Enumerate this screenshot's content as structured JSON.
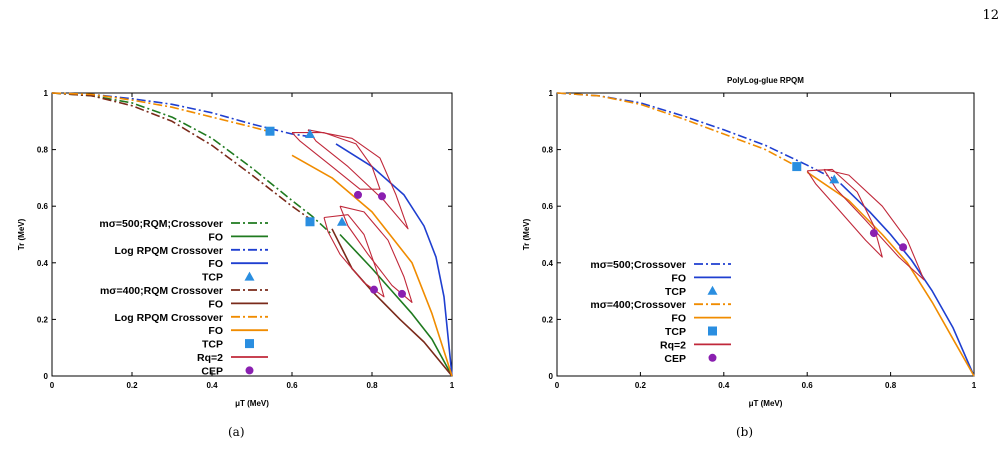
{
  "page_number": "12",
  "captions": [
    "(a)",
    "(b)"
  ],
  "colors": {
    "green": "#1f7a1f",
    "blue": "#1f3fd0",
    "darkred": "#7a2a1a",
    "orange": "#f08c00",
    "crimson": "#c0283a",
    "tcp": "#2a8ee0",
    "cep": "#8a1fb0"
  },
  "chart_data": [
    {
      "type": "line",
      "title": "",
      "xlabel": "μT (MeV)",
      "ylabel": "Tr (MeV)",
      "xlim": [
        0,
        1
      ],
      "ylim": [
        0,
        1
      ],
      "xticks": [
        "0",
        "0.2",
        "0.4",
        "0.6",
        "0.8",
        "1"
      ],
      "yticks": [
        "0",
        "0.2",
        "0.4",
        "0.6",
        "0.8",
        "1"
      ],
      "grid": false,
      "legend_position": "left",
      "legend": [
        {
          "label": "mσ=500;RQM;Crossover",
          "style": "dashdot",
          "color": "green"
        },
        {
          "label": "FO",
          "style": "solid",
          "color": "green"
        },
        {
          "label": "Log RPQM Crossover",
          "style": "dashdot",
          "color": "blue"
        },
        {
          "label": "FO",
          "style": "solid",
          "color": "blue"
        },
        {
          "label": "TCP",
          "style": "triangle",
          "color": "tcp"
        },
        {
          "label": "mσ=400;RQM Crossover",
          "style": "dashdot",
          "color": "darkred"
        },
        {
          "label": "FO",
          "style": "solid",
          "color": "darkred"
        },
        {
          "label": "Log RPQM Crossover",
          "style": "dashdot",
          "color": "orange"
        },
        {
          "label": "FO",
          "style": "solid",
          "color": "orange"
        },
        {
          "label": "TCP",
          "style": "square",
          "color": "tcp"
        },
        {
          "label": "Rq=2",
          "style": "solid",
          "color": "crimson"
        },
        {
          "label": "CEP",
          "style": "circle",
          "color": "cep"
        }
      ],
      "series": [
        {
          "color": "green",
          "style": "dashdot",
          "points": [
            [
              0,
              1
            ],
            [
              0.1,
              0.99
            ],
            [
              0.2,
              0.965
            ],
            [
              0.3,
              0.915
            ],
            [
              0.4,
              0.84
            ],
            [
              0.5,
              0.735
            ],
            [
              0.6,
              0.62
            ],
            [
              0.65,
              0.565
            ],
            [
              0.7,
              0.5
            ]
          ]
        },
        {
          "color": "green",
          "style": "solid",
          "points": [
            [
              0.72,
              0.5
            ],
            [
              0.8,
              0.38
            ],
            [
              0.85,
              0.3
            ],
            [
              0.9,
              0.22
            ],
            [
              0.95,
              0.13
            ],
            [
              1,
              0
            ]
          ]
        },
        {
          "color": "blue",
          "style": "dashdot",
          "points": [
            [
              0,
              1
            ],
            [
              0.1,
              0.995
            ],
            [
              0.2,
              0.98
            ],
            [
              0.3,
              0.96
            ],
            [
              0.4,
              0.93
            ],
            [
              0.5,
              0.89
            ],
            [
              0.6,
              0.855
            ],
            [
              0.65,
              0.845
            ]
          ]
        },
        {
          "color": "blue",
          "style": "solid",
          "points": [
            [
              0.71,
              0.82
            ],
            [
              0.8,
              0.74
            ],
            [
              0.88,
              0.64
            ],
            [
              0.93,
              0.53
            ],
            [
              0.96,
              0.42
            ],
            [
              0.98,
              0.28
            ],
            [
              1,
              0
            ]
          ]
        },
        {
          "color": "darkred",
          "style": "dashdot",
          "points": [
            [
              0,
              1
            ],
            [
              0.1,
              0.99
            ],
            [
              0.2,
              0.955
            ],
            [
              0.3,
              0.9
            ],
            [
              0.4,
              0.815
            ],
            [
              0.5,
              0.71
            ],
            [
              0.6,
              0.6
            ],
            [
              0.66,
              0.54
            ]
          ]
        },
        {
          "color": "darkred",
          "style": "solid",
          "points": [
            [
              0.7,
              0.52
            ],
            [
              0.75,
              0.38
            ],
            [
              0.8,
              0.3
            ],
            [
              0.87,
              0.2
            ],
            [
              0.93,
              0.12
            ],
            [
              1,
              0
            ]
          ]
        },
        {
          "color": "orange",
          "style": "dashdot",
          "points": [
            [
              0,
              1
            ],
            [
              0.1,
              0.995
            ],
            [
              0.2,
              0.975
            ],
            [
              0.3,
              0.95
            ],
            [
              0.4,
              0.915
            ],
            [
              0.5,
              0.88
            ],
            [
              0.54,
              0.865
            ]
          ]
        },
        {
          "color": "orange",
          "style": "solid",
          "points": [
            [
              0.6,
              0.78
            ],
            [
              0.7,
              0.7
            ],
            [
              0.8,
              0.58
            ],
            [
              0.9,
              0.4
            ],
            [
              0.95,
              0.22
            ],
            [
              1,
              0
            ]
          ]
        },
        {
          "color": "crimson",
          "style": "loop",
          "points": [
            [
              0.6,
              0.86
            ],
            [
              0.68,
              0.86
            ],
            [
              0.76,
              0.82
            ],
            [
              0.8,
              0.74
            ],
            [
              0.82,
              0.66
            ],
            [
              0.77,
              0.66
            ],
            [
              0.7,
              0.74
            ],
            [
              0.62,
              0.83
            ],
            [
              0.6,
              0.86
            ]
          ]
        },
        {
          "color": "crimson",
          "style": "loop",
          "points": [
            [
              0.64,
              0.87
            ],
            [
              0.75,
              0.84
            ],
            [
              0.82,
              0.77
            ],
            [
              0.86,
              0.64
            ],
            [
              0.89,
              0.52
            ],
            [
              0.83,
              0.62
            ],
            [
              0.74,
              0.74
            ],
            [
              0.66,
              0.83
            ],
            [
              0.64,
              0.87
            ]
          ]
        },
        {
          "color": "crimson",
          "style": "loop",
          "points": [
            [
              0.68,
              0.56
            ],
            [
              0.74,
              0.57
            ],
            [
              0.78,
              0.5
            ],
            [
              0.81,
              0.38
            ],
            [
              0.83,
              0.28
            ],
            [
              0.78,
              0.33
            ],
            [
              0.72,
              0.43
            ],
            [
              0.69,
              0.51
            ],
            [
              0.68,
              0.56
            ]
          ]
        },
        {
          "color": "crimson",
          "style": "loop",
          "points": [
            [
              0.72,
              0.6
            ],
            [
              0.78,
              0.58
            ],
            [
              0.84,
              0.48
            ],
            [
              0.88,
              0.35
            ],
            [
              0.9,
              0.26
            ],
            [
              0.85,
              0.32
            ],
            [
              0.79,
              0.43
            ],
            [
              0.74,
              0.53
            ],
            [
              0.72,
              0.6
            ]
          ]
        }
      ],
      "markers": [
        {
          "shape": "square",
          "color": "tcp",
          "x": 0.545,
          "y": 0.865
        },
        {
          "shape": "square",
          "color": "tcp",
          "x": 0.645,
          "y": 0.545
        },
        {
          "shape": "triangle",
          "color": "tcp",
          "x": 0.645,
          "y": 0.855
        },
        {
          "shape": "triangle",
          "color": "tcp",
          "x": 0.725,
          "y": 0.545
        },
        {
          "shape": "circle",
          "color": "cep",
          "x": 0.765,
          "y": 0.64
        },
        {
          "shape": "circle",
          "color": "cep",
          "x": 0.825,
          "y": 0.635
        },
        {
          "shape": "circle",
          "color": "cep",
          "x": 0.805,
          "y": 0.305
        },
        {
          "shape": "circle",
          "color": "cep",
          "x": 0.875,
          "y": 0.29
        }
      ]
    },
    {
      "type": "line",
      "title": "PolyLog-glue RPQM",
      "xlabel": "μT (MeV)",
      "ylabel": "Tr (MeV)",
      "xlim": [
        0,
        1
      ],
      "ylim": [
        0,
        1
      ],
      "xticks": [
        "0",
        "0.2",
        "0.4",
        "0.6",
        "0.8",
        "1"
      ],
      "yticks": [
        "0",
        "0.2",
        "0.4",
        "0.6",
        "0.8",
        "1"
      ],
      "grid": false,
      "legend_position": "left",
      "legend": [
        {
          "label": "mσ=500;Crossover",
          "style": "dashdot",
          "color": "blue"
        },
        {
          "label": "FO",
          "style": "solid",
          "color": "blue"
        },
        {
          "label": "TCP",
          "style": "triangle",
          "color": "tcp"
        },
        {
          "label": "mσ=400;Crossover",
          "style": "dashdot",
          "color": "orange"
        },
        {
          "label": "FO",
          "style": "solid",
          "color": "orange"
        },
        {
          "label": "TCP",
          "style": "square",
          "color": "tcp"
        },
        {
          "label": "Rq=2",
          "style": "solid",
          "color": "crimson"
        },
        {
          "label": "CEP",
          "style": "circle",
          "color": "cep"
        }
      ],
      "series": [
        {
          "color": "blue",
          "style": "dashdot",
          "points": [
            [
              0,
              1
            ],
            [
              0.1,
              0.99
            ],
            [
              0.2,
              0.965
            ],
            [
              0.3,
              0.92
            ],
            [
              0.4,
              0.87
            ],
            [
              0.5,
              0.815
            ],
            [
              0.6,
              0.745
            ],
            [
              0.66,
              0.7
            ]
          ]
        },
        {
          "color": "blue",
          "style": "solid",
          "points": [
            [
              0.68,
              0.68
            ],
            [
              0.75,
              0.58
            ],
            [
              0.8,
              0.5
            ],
            [
              0.85,
              0.41
            ],
            [
              0.9,
              0.3
            ],
            [
              0.95,
              0.17
            ],
            [
              1,
              0
            ]
          ]
        },
        {
          "color": "orange",
          "style": "dashdot",
          "points": [
            [
              0,
              1
            ],
            [
              0.1,
              0.99
            ],
            [
              0.2,
              0.96
            ],
            [
              0.3,
              0.91
            ],
            [
              0.4,
              0.855
            ],
            [
              0.5,
              0.8
            ],
            [
              0.57,
              0.745
            ]
          ]
        },
        {
          "color": "orange",
          "style": "solid",
          "points": [
            [
              0.6,
              0.72
            ],
            [
              0.7,
              0.62
            ],
            [
              0.78,
              0.5
            ],
            [
              0.84,
              0.4
            ],
            [
              0.9,
              0.26
            ],
            [
              0.95,
              0.13
            ],
            [
              1,
              0
            ]
          ]
        },
        {
          "color": "crimson",
          "style": "loop",
          "points": [
            [
              0.6,
              0.725
            ],
            [
              0.66,
              0.73
            ],
            [
              0.72,
              0.65
            ],
            [
              0.76,
              0.53
            ],
            [
              0.78,
              0.42
            ],
            [
              0.74,
              0.48
            ],
            [
              0.68,
              0.58
            ],
            [
              0.62,
              0.68
            ],
            [
              0.6,
              0.725
            ]
          ]
        },
        {
          "color": "crimson",
          "style": "loop",
          "points": [
            [
              0.64,
              0.73
            ],
            [
              0.7,
              0.71
            ],
            [
              0.78,
              0.6
            ],
            [
              0.84,
              0.48
            ],
            [
              0.88,
              0.34
            ],
            [
              0.82,
              0.42
            ],
            [
              0.74,
              0.55
            ],
            [
              0.67,
              0.66
            ],
            [
              0.64,
              0.73
            ]
          ]
        }
      ],
      "markers": [
        {
          "shape": "square",
          "color": "tcp",
          "x": 0.575,
          "y": 0.74
        },
        {
          "shape": "triangle",
          "color": "tcp",
          "x": 0.665,
          "y": 0.695
        },
        {
          "shape": "circle",
          "color": "cep",
          "x": 0.76,
          "y": 0.505
        },
        {
          "shape": "circle",
          "color": "cep",
          "x": 0.83,
          "y": 0.455
        }
      ]
    }
  ]
}
